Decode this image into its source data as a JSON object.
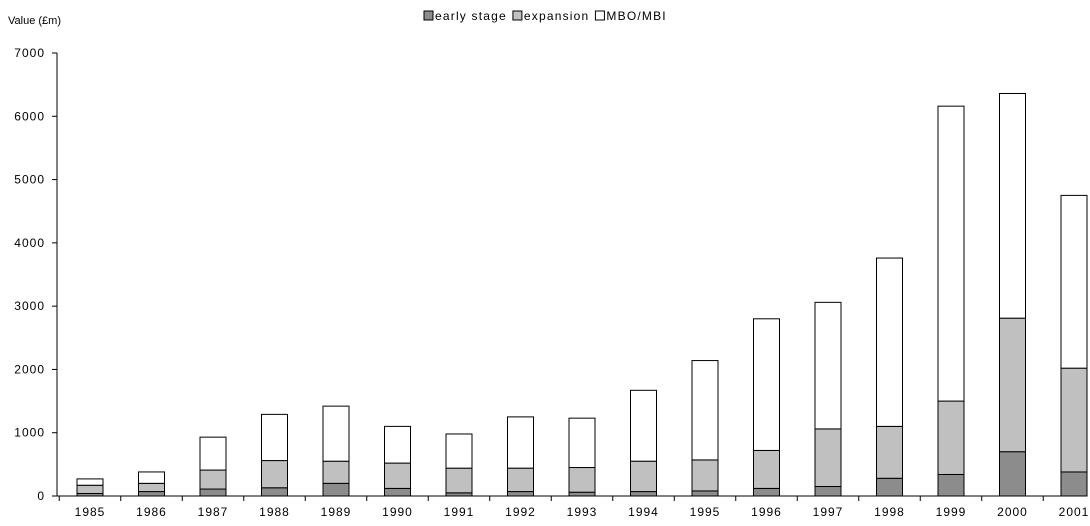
{
  "chart_data": {
    "type": "bar",
    "stacked": true,
    "title": "",
    "xlabel": "",
    "ylabel": "Value (£m)",
    "ylim": [
      0,
      7000
    ],
    "yticks": [
      0,
      1000,
      2000,
      3000,
      4000,
      5000,
      6000,
      7000
    ],
    "grid": false,
    "legend_position": "top-center",
    "categories": [
      "1985",
      "1986",
      "1987",
      "1988",
      "1989",
      "1990",
      "1991",
      "1992",
      "1993",
      "1994",
      "1995",
      "1996",
      "1997",
      "1998",
      "1999",
      "2000",
      "2001"
    ],
    "series": [
      {
        "name": "early stage",
        "color": "#8c8c8c",
        "values": [
          40,
          70,
          110,
          130,
          200,
          120,
          50,
          70,
          60,
          70,
          80,
          120,
          150,
          280,
          340,
          700,
          380
        ]
      },
      {
        "name": "expansion",
        "color": "#c0c0c0",
        "values": [
          130,
          130,
          300,
          430,
          350,
          400,
          390,
          370,
          390,
          480,
          490,
          600,
          910,
          820,
          1160,
          2110,
          1640
        ]
      },
      {
        "name": "MBO/MBI",
        "color": "#ffffff",
        "values": [
          100,
          180,
          520,
          730,
          870,
          580,
          540,
          810,
          780,
          1120,
          1570,
          2080,
          2000,
          2660,
          4660,
          3550,
          2730
        ]
      }
    ]
  }
}
